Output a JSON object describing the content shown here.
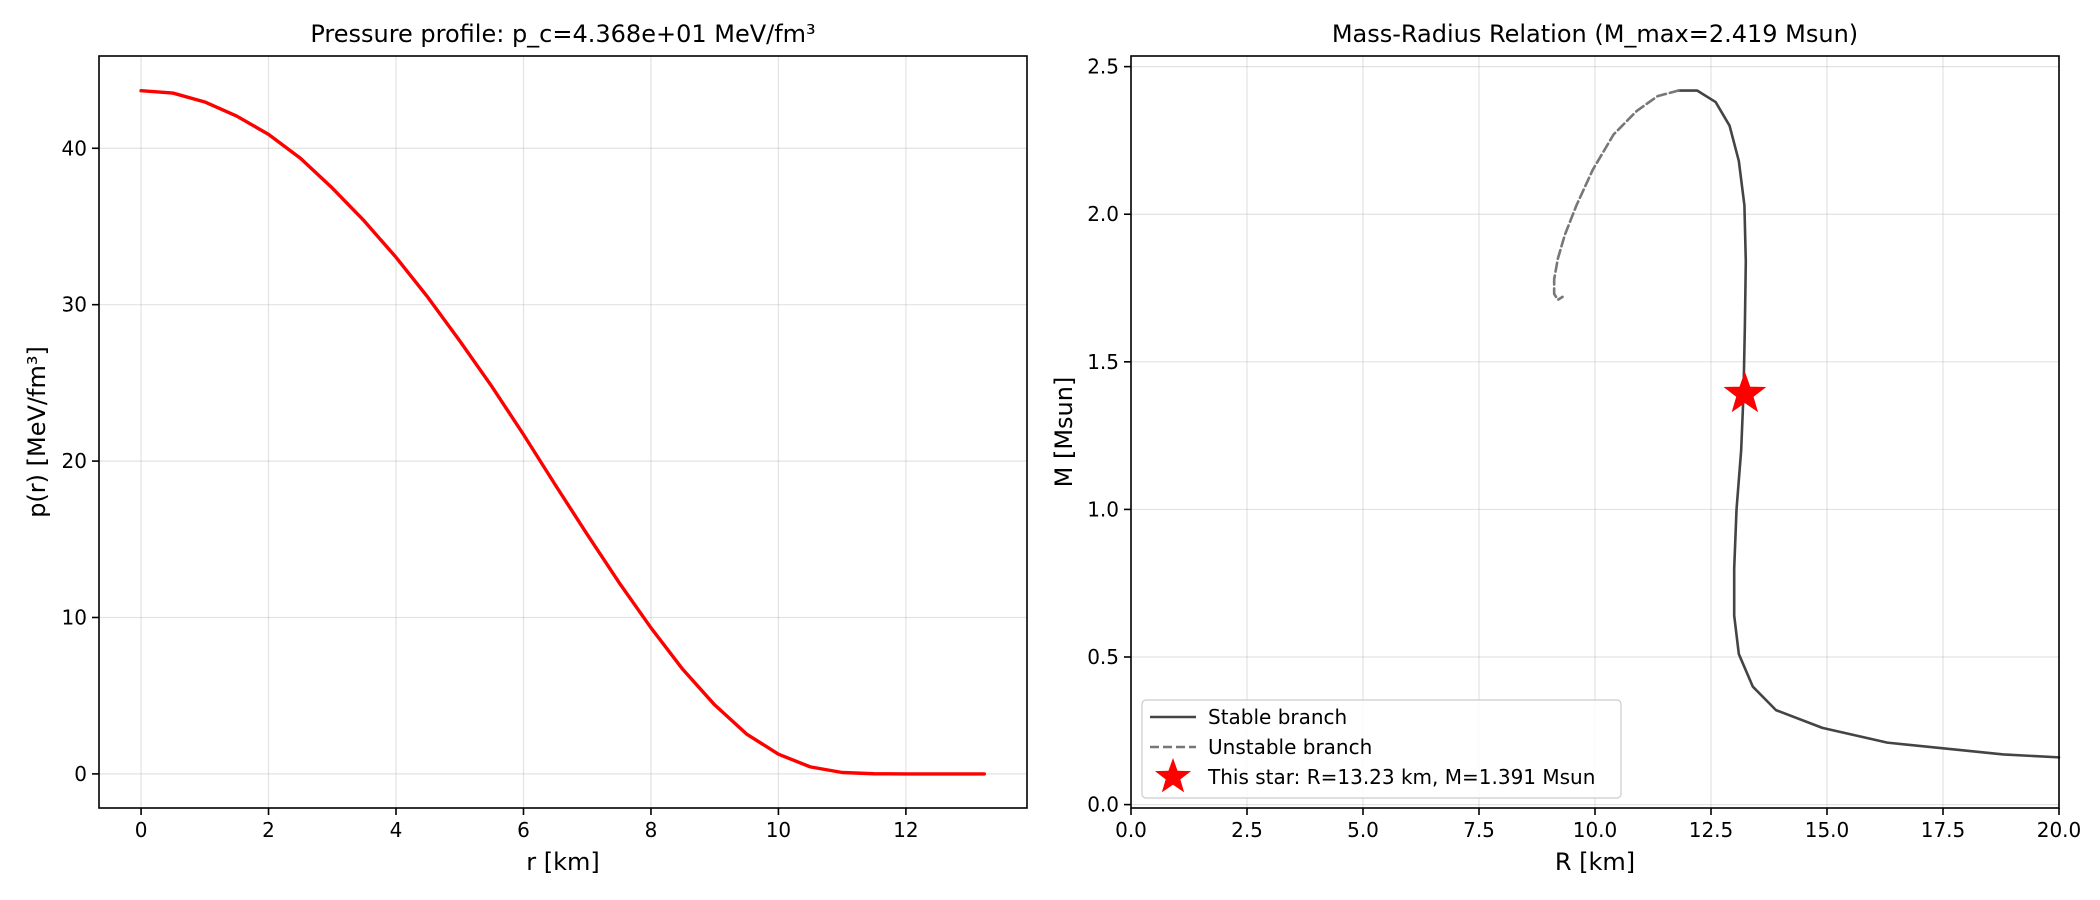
{
  "chart_data": [
    {
      "type": "line",
      "title": "Pressure profile: p_c=4.368e+01 MeV/fm³",
      "xlabel": "r [km]",
      "ylabel": "p(r) [MeV/fm³]",
      "xlim": [
        -0.66,
        13.9
      ],
      "ylim": [
        -2.18,
        45.9
      ],
      "xticks": [
        0,
        2,
        4,
        6,
        8,
        10,
        12
      ],
      "yticks": [
        0,
        10,
        20,
        30,
        40
      ],
      "grid": true,
      "series": [
        {
          "color": "#ff0000",
          "x": [
            0,
            0.5,
            1,
            1.5,
            2,
            2.5,
            3,
            3.5,
            4,
            4.5,
            5,
            5.5,
            6,
            6.5,
            7,
            7.5,
            8,
            8.5,
            9,
            9.5,
            10,
            10.5,
            11,
            11.5,
            12,
            12.3,
            12.6,
            13.0,
            13.23
          ],
          "y": [
            43.68,
            43.53,
            42.96,
            42.06,
            40.89,
            39.36,
            37.46,
            35.36,
            33.03,
            30.47,
            27.69,
            24.79,
            21.7,
            18.47,
            15.31,
            12.23,
            9.34,
            6.68,
            4.41,
            2.55,
            1.26,
            0.45,
            0.09,
            0.01,
            0,
            0,
            0,
            0,
            0
          ]
        }
      ]
    },
    {
      "type": "line",
      "title": "Mass-Radius Relation (M_max=2.419 Msun)",
      "xlabel": "R [km]",
      "ylabel": "M [Msun]",
      "xlim": [
        0,
        20
      ],
      "ylim": [
        -0.0115,
        2.536
      ],
      "xticks": [
        0.0,
        2.5,
        5.0,
        7.5,
        10.0,
        12.5,
        15.0,
        17.5,
        20.0
      ],
      "yticks": [
        0.0,
        0.5,
        1.0,
        1.5,
        2.0,
        2.5
      ],
      "grid": true,
      "legend_position": "lower-left",
      "series": [
        {
          "name": "Stable branch",
          "color": "#444444",
          "style": "solid",
          "x": [
            20.0,
            18.8,
            16.3,
            14.9,
            13.9,
            13.4,
            13.1,
            13.0,
            13.0,
            13.05,
            13.15,
            13.2,
            13.23,
            13.25,
            13.22,
            13.1,
            12.9,
            12.6,
            12.2,
            11.8
          ],
          "y": [
            0.16,
            0.17,
            0.21,
            0.26,
            0.32,
            0.4,
            0.51,
            0.64,
            0.8,
            1.0,
            1.2,
            1.39,
            1.62,
            1.84,
            2.03,
            2.18,
            2.3,
            2.38,
            2.419,
            2.419
          ]
        },
        {
          "name": "Unstable branch",
          "color": "#777777",
          "style": "dashed",
          "x": [
            11.8,
            11.35,
            10.9,
            10.4,
            9.95,
            9.6,
            9.35,
            9.2,
            9.12,
            9.12,
            9.2,
            9.3
          ],
          "y": [
            2.419,
            2.4,
            2.35,
            2.27,
            2.15,
            2.03,
            1.93,
            1.85,
            1.78,
            1.73,
            1.71,
            1.72
          ]
        }
      ],
      "marker": {
        "name": "This star: R=13.23 km, M=1.391 Msun",
        "x": 13.23,
        "y": 1.391,
        "color": "#ff0000",
        "symbol": "star"
      }
    }
  ]
}
